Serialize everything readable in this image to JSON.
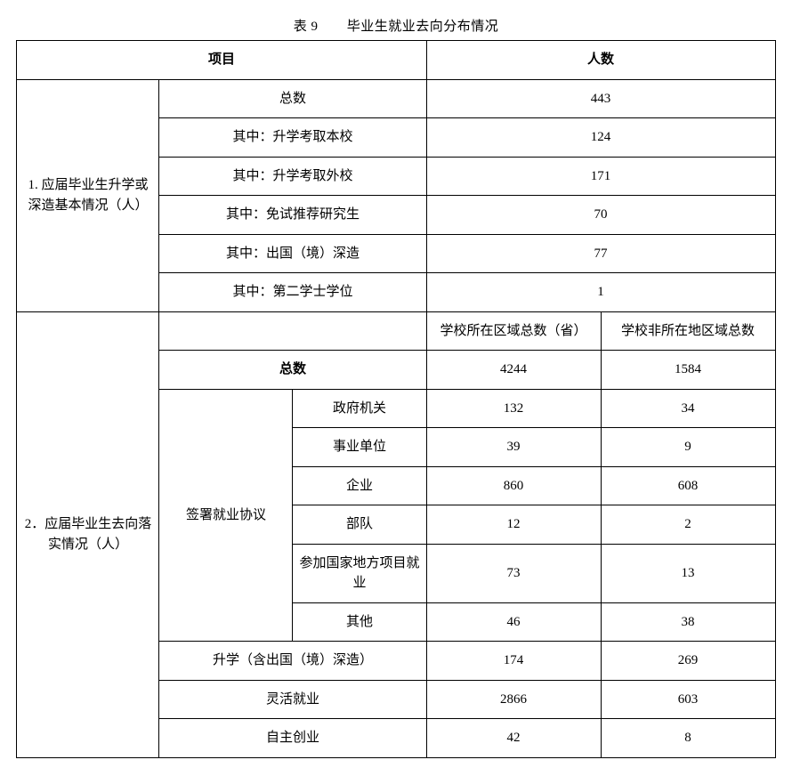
{
  "background_color": "#ffffff",
  "text_color": "#000000",
  "border_color": "#000000",
  "font_family": "SimSun",
  "font_size_pt": 12,
  "caption": {
    "table_no": "表 9",
    "title": "毕业生就业去向分布情况"
  },
  "header": {
    "project": "项目",
    "count": "人数"
  },
  "section1": {
    "title": "1. 应届毕业生升学或深造基本情况（人）",
    "rows": [
      {
        "label": "总数",
        "value": "443"
      },
      {
        "label": "其中：升学考取本校",
        "value": "124"
      },
      {
        "label": "其中：升学考取外校",
        "value": "171"
      },
      {
        "label": "其中：免试推荐研究生",
        "value": "70"
      },
      {
        "label": "其中：出国（境）深造",
        "value": "77"
      },
      {
        "label": "其中：第二学士学位",
        "value": "1"
      }
    ]
  },
  "section2": {
    "title": "2．应届毕业生去向落实情况（人）",
    "subheaders": {
      "in_region": "学校所在区域总数（省）",
      "out_region": "学校非所在地区域总数"
    },
    "total": {
      "label": "总数",
      "in": "4244",
      "out": "1584"
    },
    "agreement": {
      "label": "签署就业协议",
      "rows": [
        {
          "label": "政府机关",
          "in": "132",
          "out": "34"
        },
        {
          "label": "事业单位",
          "in": "39",
          "out": "9"
        },
        {
          "label": "企业",
          "in": "860",
          "out": "608"
        },
        {
          "label": "部队",
          "in": "12",
          "out": "2"
        },
        {
          "label": "参加国家地方项目就业",
          "in": "73",
          "out": "13"
        },
        {
          "label": "其他",
          "in": "46",
          "out": "38"
        }
      ]
    },
    "other_rows": [
      {
        "label": "升学（含出国（境）深造）",
        "in": "174",
        "out": "269"
      },
      {
        "label": "灵活就业",
        "in": "2866",
        "out": "603"
      },
      {
        "label": "自主创业",
        "in": "42",
        "out": "8"
      }
    ]
  }
}
